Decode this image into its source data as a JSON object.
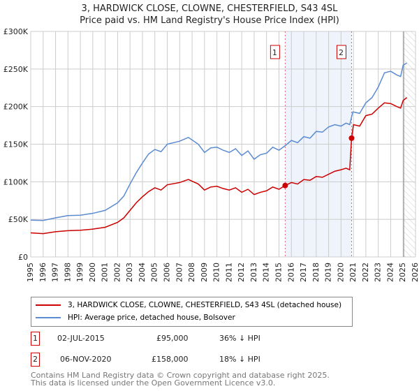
{
  "chart_data": {
    "type": "line",
    "title": "3, HARDWICK CLOSE, CLOWNE, CHESTERFIELD, S43 4SL",
    "subtitle": "Price paid vs. HM Land Registry's House Price Index (HPI)",
    "xlabel": "",
    "ylabel": "",
    "xlim": [
      1995,
      2026
    ],
    "ylim": [
      0,
      300000
    ],
    "x_ticks": [
      "1995",
      "1996",
      "1997",
      "1998",
      "1999",
      "2000",
      "2001",
      "2002",
      "2003",
      "2004",
      "2005",
      "2006",
      "2007",
      "2008",
      "2009",
      "2010",
      "2011",
      "2012",
      "2013",
      "2014",
      "2015",
      "2016",
      "2017",
      "2018",
      "2019",
      "2020",
      "2021",
      "2022",
      "2023",
      "2024",
      "2025",
      "2026"
    ],
    "y_ticks": [
      {
        "v": 0,
        "label": "£0"
      },
      {
        "v": 50000,
        "label": "£50K"
      },
      {
        "v": 100000,
        "label": "£100K"
      },
      {
        "v": 150000,
        "label": "£150K"
      },
      {
        "v": 200000,
        "label": "£200K"
      },
      {
        "v": 250000,
        "label": "£250K"
      },
      {
        "v": 300000,
        "label": "£300K"
      }
    ],
    "grid": true,
    "series": [
      {
        "name": "3, HARDWICK CLOSE, CLOWNE, CHESTERFIELD, S43 4SL (detached house)",
        "color": "#cc0000",
        "points": [
          [
            1995,
            32000
          ],
          [
            1996,
            31000
          ],
          [
            1997,
            33500
          ],
          [
            1998,
            35000
          ],
          [
            1999,
            35500
          ],
          [
            2000,
            37000
          ],
          [
            2001,
            39500
          ],
          [
            2002,
            46000
          ],
          [
            2002.5,
            52000
          ],
          [
            2003,
            62000
          ],
          [
            2003.5,
            72000
          ],
          [
            2004,
            80000
          ],
          [
            2004.5,
            87000
          ],
          [
            2005,
            92000
          ],
          [
            2005.5,
            89000
          ],
          [
            2006,
            96000
          ],
          [
            2007,
            99000
          ],
          [
            2007.7,
            103000
          ],
          [
            2008.5,
            97000
          ],
          [
            2009,
            89000
          ],
          [
            2009.5,
            93000
          ],
          [
            2010,
            94000
          ],
          [
            2010.5,
            91000
          ],
          [
            2011,
            89000
          ],
          [
            2011.5,
            92000
          ],
          [
            2012,
            86000
          ],
          [
            2012.5,
            90000
          ],
          [
            2013,
            83000
          ],
          [
            2013.5,
            86000
          ],
          [
            2014,
            88000
          ],
          [
            2014.5,
            93000
          ],
          [
            2015,
            90000
          ],
          [
            2015.5,
            95000
          ],
          [
            2016,
            99000
          ],
          [
            2016.5,
            97000
          ],
          [
            2017,
            103000
          ],
          [
            2017.5,
            102000
          ],
          [
            2018,
            107000
          ],
          [
            2018.5,
            106000
          ],
          [
            2019,
            110000
          ],
          [
            2019.5,
            114000
          ],
          [
            2020,
            116000
          ],
          [
            2020.4,
            118000
          ],
          [
            2020.7,
            116000
          ],
          [
            2020.85,
            158000
          ],
          [
            2021,
            176000
          ],
          [
            2021.5,
            174000
          ],
          [
            2022,
            188000
          ],
          [
            2022.5,
            190000
          ],
          [
            2023,
            198000
          ],
          [
            2023.5,
            205000
          ],
          [
            2024,
            204000
          ],
          [
            2024.5,
            200000
          ],
          [
            2024.8,
            198000
          ],
          [
            2025,
            208000
          ],
          [
            2025.3,
            212000
          ]
        ]
      },
      {
        "name": "HPI: Average price, detached house, Bolsover",
        "color": "#5b8bd0",
        "points": [
          [
            1995,
            49000
          ],
          [
            1996,
            48500
          ],
          [
            1997,
            52000
          ],
          [
            1998,
            55000
          ],
          [
            1999,
            55500
          ],
          [
            2000,
            58000
          ],
          [
            2001,
            62000
          ],
          [
            2002,
            72000
          ],
          [
            2002.5,
            81000
          ],
          [
            2003,
            97000
          ],
          [
            2003.5,
            112000
          ],
          [
            2004,
            125000
          ],
          [
            2004.5,
            137000
          ],
          [
            2005,
            143000
          ],
          [
            2005.5,
            140000
          ],
          [
            2006,
            150000
          ],
          [
            2007,
            154000
          ],
          [
            2007.7,
            159000
          ],
          [
            2008.5,
            150000
          ],
          [
            2009,
            139000
          ],
          [
            2009.5,
            145000
          ],
          [
            2010,
            146000
          ],
          [
            2010.5,
            142000
          ],
          [
            2011,
            139000
          ],
          [
            2011.5,
            144000
          ],
          [
            2012,
            135000
          ],
          [
            2012.5,
            141000
          ],
          [
            2013,
            130000
          ],
          [
            2013.5,
            136000
          ],
          [
            2014,
            138000
          ],
          [
            2014.5,
            146000
          ],
          [
            2015,
            142000
          ],
          [
            2015.5,
            148000
          ],
          [
            2016,
            155000
          ],
          [
            2016.5,
            152000
          ],
          [
            2017,
            160000
          ],
          [
            2017.5,
            158000
          ],
          [
            2018,
            167000
          ],
          [
            2018.5,
            166000
          ],
          [
            2019,
            173000
          ],
          [
            2019.5,
            176000
          ],
          [
            2020,
            174000
          ],
          [
            2020.4,
            178000
          ],
          [
            2020.7,
            176000
          ],
          [
            2020.95,
            193000
          ],
          [
            2021.5,
            191000
          ],
          [
            2022,
            205000
          ],
          [
            2022.5,
            212000
          ],
          [
            2023,
            226000
          ],
          [
            2023.5,
            245000
          ],
          [
            2024,
            247000
          ],
          [
            2024.5,
            242000
          ],
          [
            2024.8,
            240000
          ],
          [
            2025,
            255000
          ],
          [
            2025.3,
            258000
          ]
        ]
      }
    ],
    "sales": [
      {
        "id": "1",
        "year": 2015.5,
        "price": 95000,
        "date": "02-JUL-2015",
        "price_label": "£95,000",
        "hpi_diff": "36% ↓ HPI"
      },
      {
        "id": "2",
        "year": 2020.85,
        "price": 158000,
        "date": "06-NOV-2020",
        "price_label": "£158,000",
        "hpi_diff": "18% ↓ HPI"
      }
    ],
    "forecast_start": 2025.05
  },
  "footer": {
    "line1": "Contains HM Land Registry data © Crown copyright and database right 2025.",
    "line2": "This data is licensed under the Open Government Licence v3.0."
  }
}
